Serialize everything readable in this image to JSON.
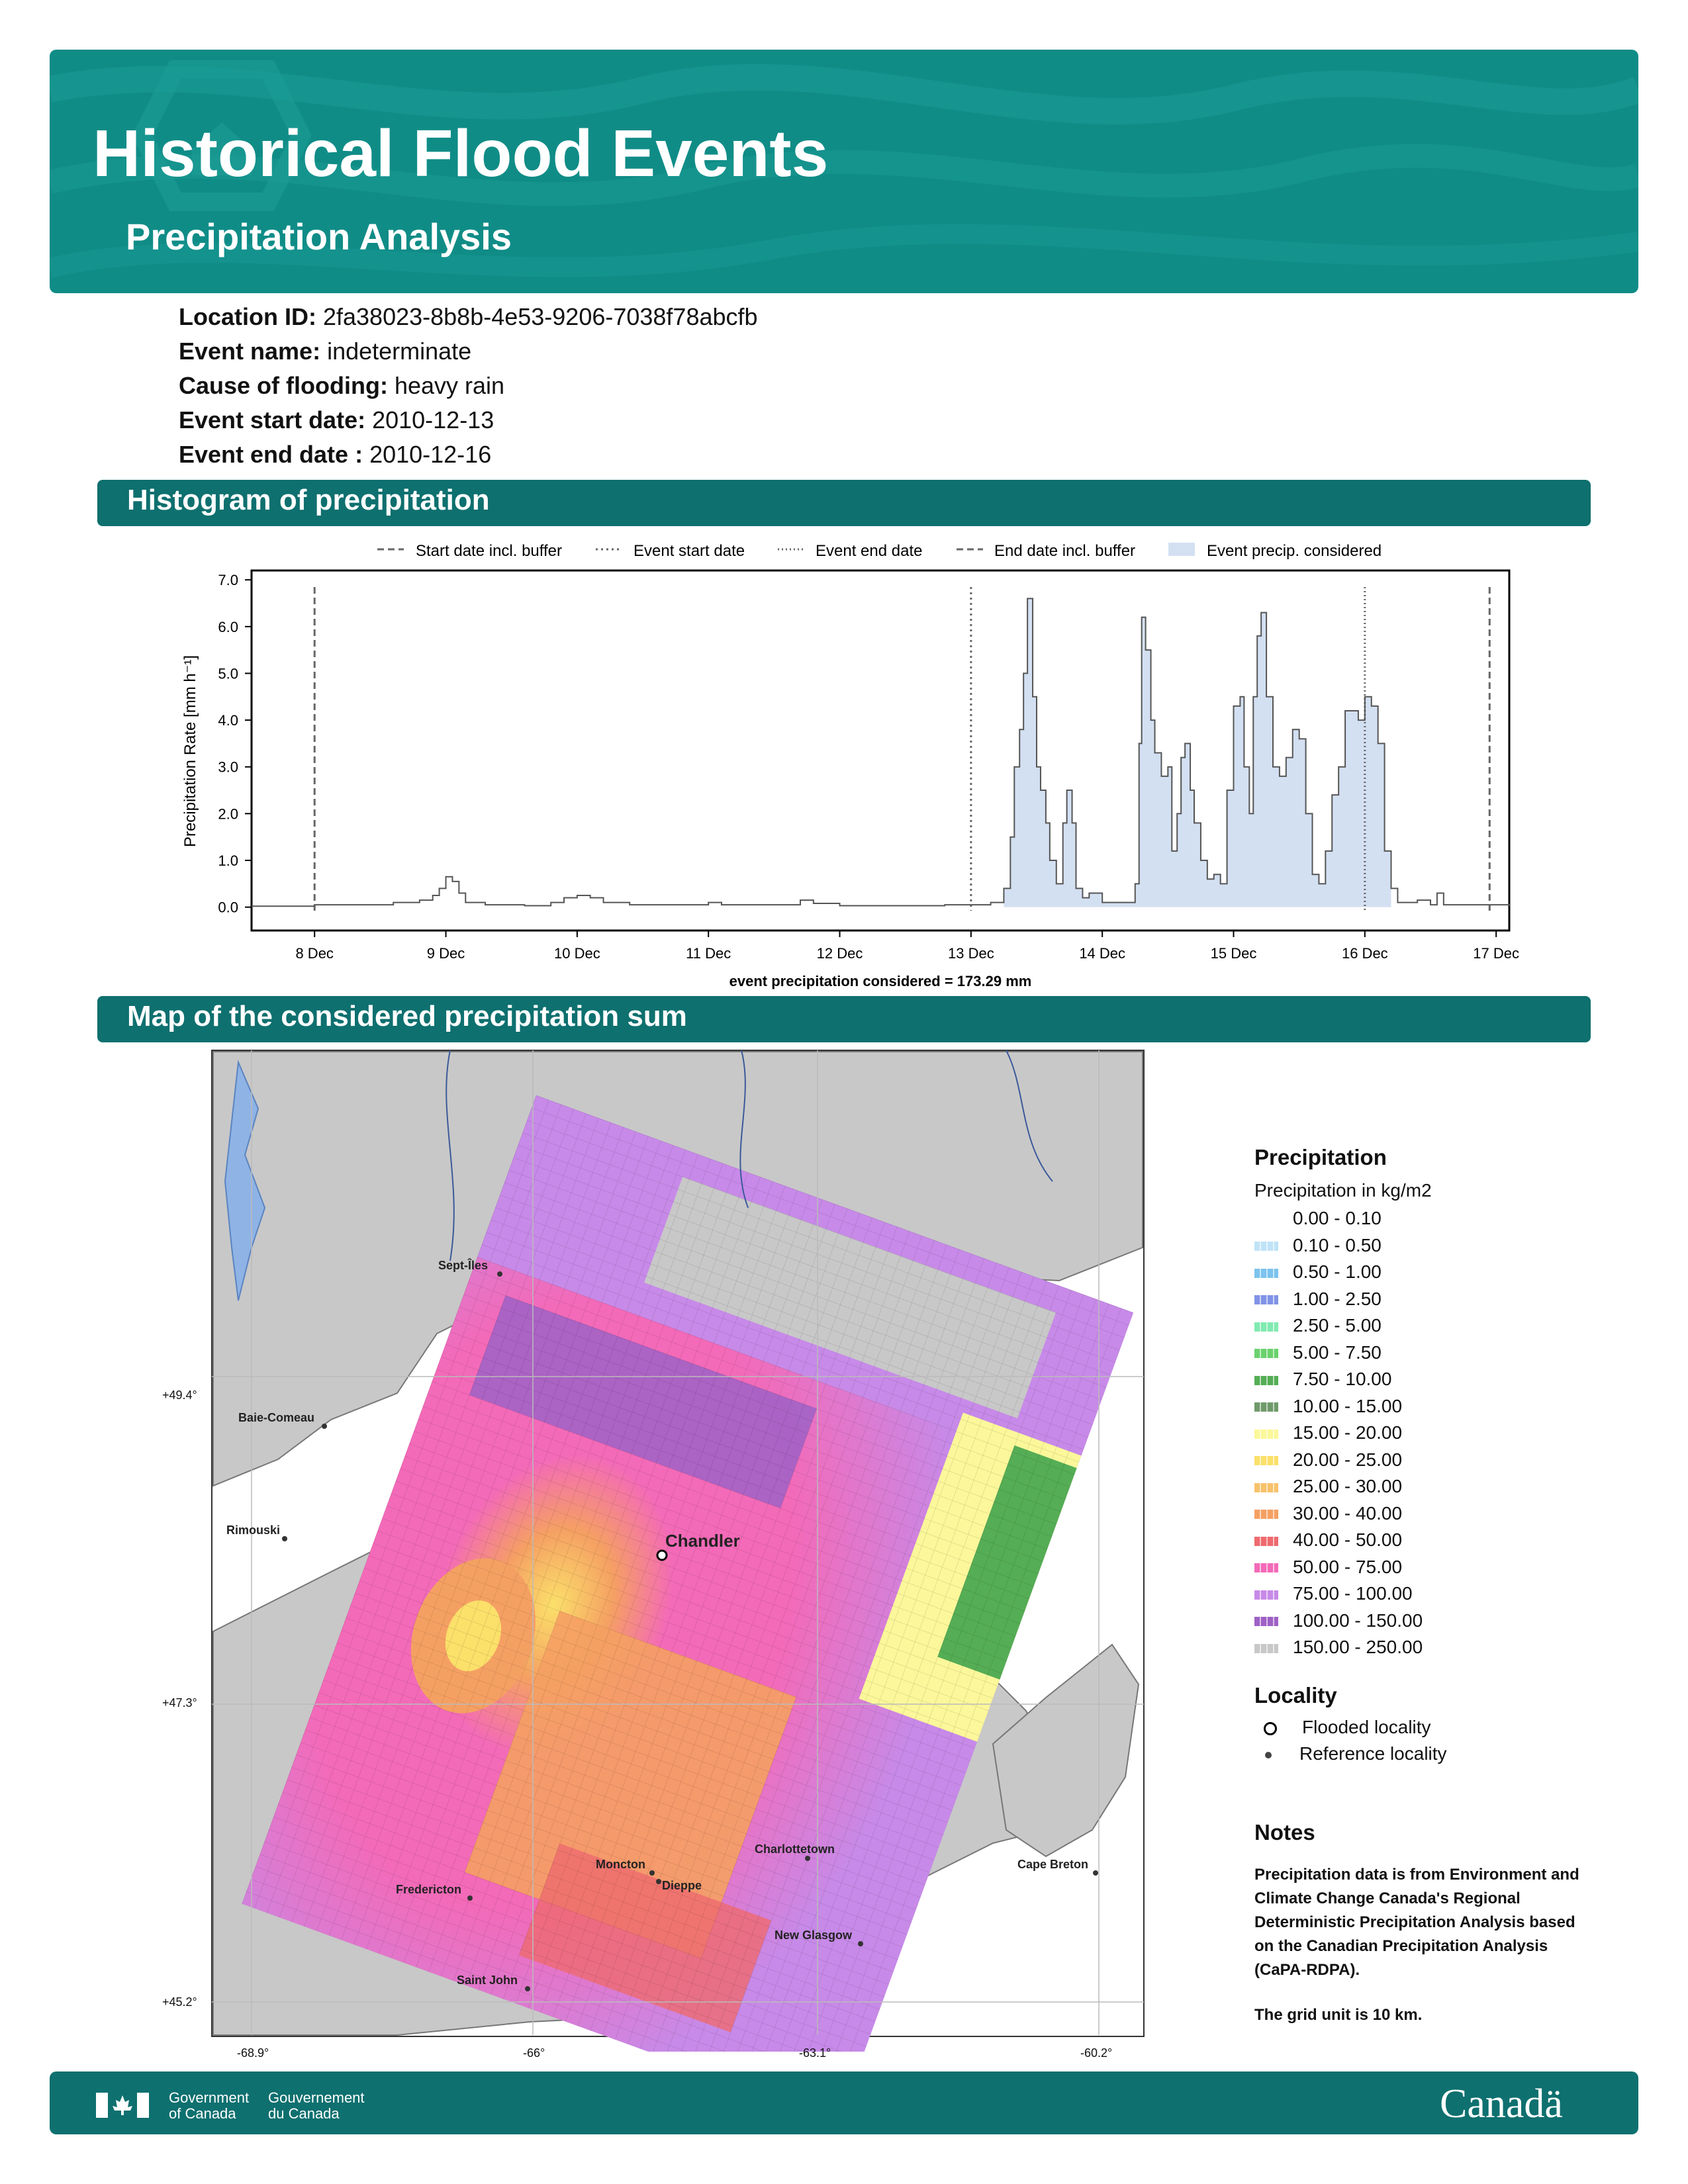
{
  "header": {
    "title": "Historical Flood Events",
    "subtitle": "Precipitation Analysis"
  },
  "event_info": [
    {
      "label": "Location ID:",
      "value": "2fa38023-8b8b-4e53-9206-7038f78abcfb"
    },
    {
      "label": "Event name:",
      "value": "indeterminate"
    },
    {
      "label": "Cause of flooding:",
      "value": "heavy rain"
    },
    {
      "label": "Event start date:",
      "value": "2010-12-13"
    },
    {
      "label": "Event end date :",
      "value": "2010-12-16"
    }
  ],
  "sections": {
    "histogram": "Histogram of precipitation",
    "map": "Map of the considered precipitation sum"
  },
  "chart_data": {
    "type": "bar",
    "ylabel": "Precipitation Rate [mm h⁻¹]",
    "xlabel": "event precipitation considered = 173.29 mm",
    "ylim": [
      -0.5,
      7.2
    ],
    "yticks": [
      "7.0",
      "6.0",
      "5.0",
      "4.0",
      "3.0",
      "2.0",
      "1.0",
      "0.0"
    ],
    "xticks": [
      "8 Dec",
      "9 Dec",
      "10 Dec",
      "11 Dec",
      "12 Dec",
      "13 Dec",
      "14 Dec",
      "15 Dec",
      "16 Dec",
      "17 Dec"
    ],
    "legend": [
      "Start date incl. buffer",
      "Event start date",
      "Event end date",
      "End date incl. buffer",
      "Event precip. considered"
    ],
    "legend_position": "top",
    "x_start_day": 7.52,
    "x_end_day": 17.1,
    "vlines_days": [
      8.0,
      13.0,
      16.0,
      16.95
    ],
    "considered_range_days": [
      13.25,
      16.2
    ],
    "series": [
      {
        "values": [
          [
            7.52,
            0.02
          ],
          [
            7.9,
            0.02
          ],
          [
            8.0,
            0.05
          ],
          [
            8.3,
            0.05
          ],
          [
            8.6,
            0.1
          ],
          [
            8.8,
            0.15
          ],
          [
            8.9,
            0.25
          ],
          [
            8.95,
            0.4
          ],
          [
            9.0,
            0.65
          ],
          [
            9.05,
            0.55
          ],
          [
            9.1,
            0.3
          ],
          [
            9.15,
            0.1
          ],
          [
            9.3,
            0.05
          ],
          [
            9.6,
            0.03
          ],
          [
            9.8,
            0.1
          ],
          [
            9.9,
            0.2
          ],
          [
            10.0,
            0.25
          ],
          [
            10.1,
            0.2
          ],
          [
            10.2,
            0.1
          ],
          [
            10.4,
            0.05
          ],
          [
            10.8,
            0.05
          ],
          [
            11.0,
            0.1
          ],
          [
            11.1,
            0.05
          ],
          [
            11.5,
            0.05
          ],
          [
            11.7,
            0.15
          ],
          [
            11.8,
            0.08
          ],
          [
            12.0,
            0.03
          ],
          [
            12.5,
            0.03
          ],
          [
            12.8,
            0.05
          ],
          [
            13.0,
            0.05
          ],
          [
            13.15,
            0.1
          ],
          [
            13.25,
            0.4
          ],
          [
            13.3,
            1.5
          ],
          [
            13.33,
            3.0
          ],
          [
            13.37,
            3.8
          ],
          [
            13.4,
            5.0
          ],
          [
            13.43,
            6.6
          ],
          [
            13.47,
            4.5
          ],
          [
            13.5,
            3.0
          ],
          [
            13.53,
            2.5
          ],
          [
            13.57,
            1.8
          ],
          [
            13.6,
            1.0
          ],
          [
            13.65,
            0.5
          ],
          [
            13.7,
            1.8
          ],
          [
            13.73,
            2.5
          ],
          [
            13.77,
            1.8
          ],
          [
            13.8,
            0.4
          ],
          [
            13.85,
            0.2
          ],
          [
            13.9,
            0.3
          ],
          [
            14.0,
            0.1
          ],
          [
            14.2,
            0.1
          ],
          [
            14.25,
            0.5
          ],
          [
            14.28,
            3.5
          ],
          [
            14.3,
            6.2
          ],
          [
            14.33,
            5.5
          ],
          [
            14.37,
            4.0
          ],
          [
            14.4,
            3.3
          ],
          [
            14.45,
            2.8
          ],
          [
            14.5,
            3.0
          ],
          [
            14.53,
            1.2
          ],
          [
            14.57,
            2.0
          ],
          [
            14.6,
            3.2
          ],
          [
            14.63,
            3.5
          ],
          [
            14.67,
            2.5
          ],
          [
            14.7,
            1.8
          ],
          [
            14.75,
            1.0
          ],
          [
            14.8,
            0.6
          ],
          [
            14.85,
            0.7
          ],
          [
            14.9,
            0.5
          ],
          [
            14.95,
            2.5
          ],
          [
            15.0,
            4.3
          ],
          [
            15.05,
            4.5
          ],
          [
            15.08,
            3.0
          ],
          [
            15.12,
            2.0
          ],
          [
            15.15,
            4.5
          ],
          [
            15.18,
            5.8
          ],
          [
            15.21,
            6.3
          ],
          [
            15.25,
            4.5
          ],
          [
            15.3,
            3.0
          ],
          [
            15.35,
            2.8
          ],
          [
            15.4,
            3.2
          ],
          [
            15.45,
            3.8
          ],
          [
            15.5,
            3.6
          ],
          [
            15.55,
            2.0
          ],
          [
            15.6,
            0.7
          ],
          [
            15.65,
            0.5
          ],
          [
            15.7,
            1.2
          ],
          [
            15.75,
            2.4
          ],
          [
            15.8,
            3.0
          ],
          [
            15.85,
            4.2
          ],
          [
            15.9,
            4.2
          ],
          [
            15.95,
            4.0
          ],
          [
            16.0,
            4.5
          ],
          [
            16.05,
            4.3
          ],
          [
            16.1,
            3.5
          ],
          [
            16.15,
            1.2
          ],
          [
            16.2,
            0.4
          ],
          [
            16.25,
            0.1
          ],
          [
            16.4,
            0.15
          ],
          [
            16.5,
            0.05
          ],
          [
            16.55,
            0.3
          ],
          [
            16.6,
            0.05
          ],
          [
            16.9,
            0.05
          ],
          [
            17.1,
            0.03
          ]
        ]
      }
    ]
  },
  "map": {
    "longitudes": [
      "-68.9°",
      "-66°",
      "-63.1°",
      "-60.2°"
    ],
    "latitudes": [
      "+49.4°",
      "+47.3°",
      "+45.2°"
    ],
    "places": [
      {
        "name": "Sept-Îles",
        "type": "reference"
      },
      {
        "name": "Baie-Comeau",
        "type": "reference"
      },
      {
        "name": "Rimouski",
        "type": "reference"
      },
      {
        "name": "Chandler",
        "type": "flooded"
      },
      {
        "name": "Moncton",
        "type": "reference"
      },
      {
        "name": "Dieppe",
        "type": "reference"
      },
      {
        "name": "Charlottetown",
        "type": "reference"
      },
      {
        "name": "Cape Breton",
        "type": "reference"
      },
      {
        "name": "Fredericton",
        "type": "reference"
      },
      {
        "name": "New Glasgow",
        "type": "reference"
      },
      {
        "name": "Saint John",
        "type": "reference"
      }
    ]
  },
  "legend": {
    "title": "Precipitation",
    "subtitle": "Precipitation in kg/m2",
    "classes": [
      {
        "label": "0.00 - 0.10",
        "color": "#ffffff"
      },
      {
        "label": "0.10 - 0.50",
        "color": "#bfe3f7"
      },
      {
        "label": "0.50 - 1.00",
        "color": "#7cc3ee"
      },
      {
        "label": "1.00 - 2.50",
        "color": "#8193e6"
      },
      {
        "label": "2.50 - 5.00",
        "color": "#80eab0"
      },
      {
        "label": "5.00 - 7.50",
        "color": "#6ad26d"
      },
      {
        "label": "7.50 - 10.00",
        "color": "#55ad55"
      },
      {
        "label": "10.00 - 15.00",
        "color": "#6f9a6a"
      },
      {
        "label": "15.00 - 20.00",
        "color": "#fbf79a"
      },
      {
        "label": "20.00 - 25.00",
        "color": "#fbe06a"
      },
      {
        "label": "25.00 - 30.00",
        "color": "#f8c26b"
      },
      {
        "label": "30.00 - 40.00",
        "color": "#f5a063"
      },
      {
        "label": "40.00 - 50.00",
        "color": "#ee6a6f"
      },
      {
        "label": "50.00 - 75.00",
        "color": "#f36ab8"
      },
      {
        "label": "75.00 - 100.00",
        "color": "#c78ae8"
      },
      {
        "label": "100.00 - 150.00",
        "color": "#9e61c6"
      },
      {
        "label": "150.00 - 250.00",
        "color": "#c8c8c8"
      }
    ],
    "locality_title": "Locality",
    "locality": [
      {
        "label": "Flooded locality"
      },
      {
        "label": "Reference locality"
      }
    ],
    "notes_title": "Notes",
    "notes_text": "Precipitation data is from Environment and Climate Change Canada's Regional Deterministic Precipitation Analysis based on the Canadian Precipitation Analysis (CaPA-RDPA).",
    "notes_grid": "The grid unit is 10 km."
  },
  "footer": {
    "gov_en_1": "Government",
    "gov_en_2": "of Canada",
    "gov_fr_1": "Gouvernement",
    "gov_fr_2": "du Canada",
    "wordmark": "Canadä"
  },
  "colors": {
    "banner": "#108c87",
    "section": "#0e706f",
    "considered_fill": "#d3e0f2"
  }
}
